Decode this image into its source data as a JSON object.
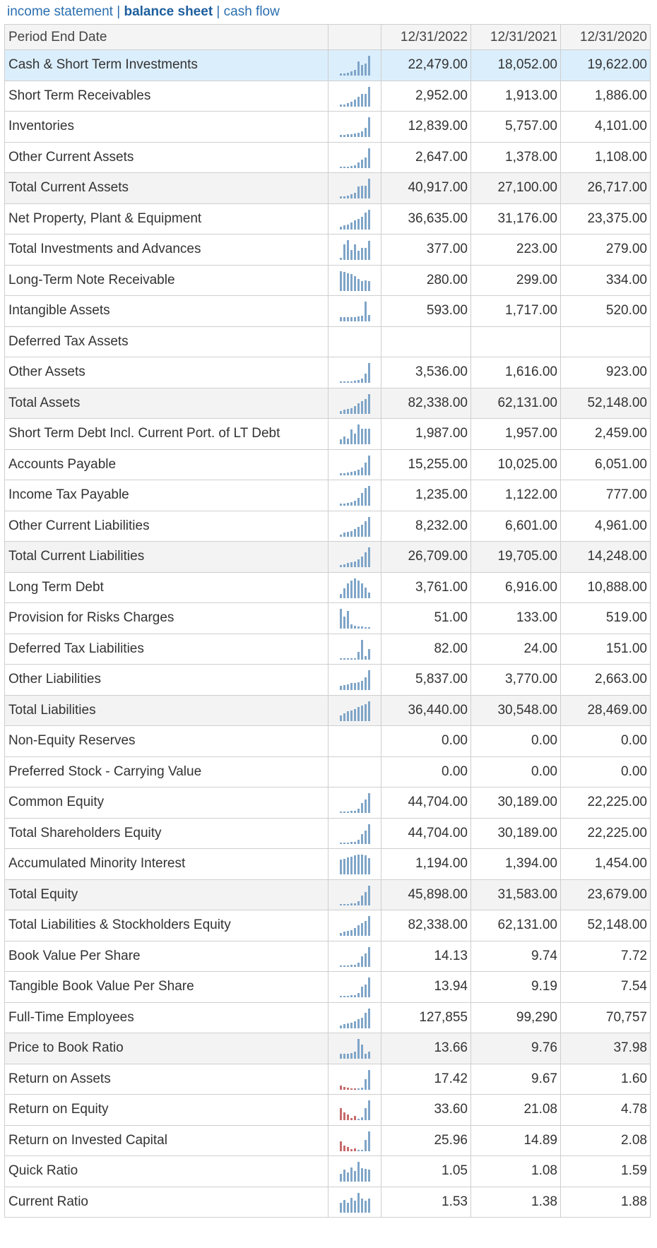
{
  "nav": {
    "income_label": "income statement",
    "balance_label": "balance sheet",
    "cashflow_label": "cash flow",
    "separator": " | "
  },
  "header": {
    "period_label": "Period End Date",
    "dates": [
      "12/31/2022",
      "12/31/2021",
      "12/31/2020"
    ]
  },
  "colors": {
    "bar": "#7fa5c8",
    "negative_bar": "#c86b6b",
    "highlight_row": "#dbeefc",
    "total_row": "#f3f3f3"
  },
  "rows": [
    {
      "label": "Cash & Short Term Investments",
      "values": [
        "22,479.00",
        "18,052.00",
        "19,622.00"
      ],
      "style": "hl",
      "spark": [
        0.1,
        0.12,
        0.15,
        0.2,
        0.3,
        0.7,
        0.55,
        0.6,
        1.0
      ]
    },
    {
      "label": "Short Term Receivables",
      "values": [
        "2,952.00",
        "1,913.00",
        "1,886.00"
      ],
      "style": "",
      "spark": [
        0.1,
        0.12,
        0.18,
        0.25,
        0.35,
        0.5,
        0.65,
        0.64,
        1.0
      ]
    },
    {
      "label": "Inventories",
      "values": [
        "12,839.00",
        "5,757.00",
        "4,101.00"
      ],
      "style": "",
      "spark": [
        0.1,
        0.12,
        0.14,
        0.16,
        0.18,
        0.22,
        0.3,
        0.45,
        1.0
      ]
    },
    {
      "label": "Other Current Assets",
      "values": [
        "2,647.00",
        "1,378.00",
        "1,108.00"
      ],
      "style": "",
      "spark": [
        0.05,
        0.06,
        0.08,
        0.1,
        0.15,
        0.3,
        0.42,
        0.52,
        1.0
      ]
    },
    {
      "label": "Total Current Assets",
      "values": [
        "40,917.00",
        "27,100.00",
        "26,717.00"
      ],
      "style": "total",
      "spark": [
        0.1,
        0.12,
        0.15,
        0.2,
        0.28,
        0.6,
        0.65,
        0.66,
        1.0
      ]
    },
    {
      "label": "Net Property, Plant & Equipment",
      "values": [
        "36,635.00",
        "31,176.00",
        "23,375.00"
      ],
      "style": "",
      "spark": [
        0.15,
        0.2,
        0.25,
        0.35,
        0.45,
        0.55,
        0.64,
        0.85,
        1.0
      ]
    },
    {
      "label": "Total Investments and Advances",
      "values": [
        "377.00",
        "223.00",
        "279.00"
      ],
      "style": "",
      "spark": [
        0.1,
        0.8,
        1.0,
        0.5,
        0.8,
        0.45,
        0.6,
        0.6,
        0.98
      ]
    },
    {
      "label": "Long-Term Note Receivable",
      "values": [
        "280.00",
        "299.00",
        "334.00"
      ],
      "style": "",
      "spark": [
        1.0,
        0.95,
        0.9,
        0.85,
        0.75,
        0.6,
        0.5,
        0.55,
        0.5
      ]
    },
    {
      "label": "Intangible Assets",
      "values": [
        "593.00",
        "1,717.00",
        "520.00"
      ],
      "style": "",
      "spark": [
        0.2,
        0.2,
        0.2,
        0.2,
        0.22,
        0.25,
        0.3,
        1.0,
        0.33
      ]
    },
    {
      "label": "Deferred Tax Assets",
      "values": [
        "",
        "",
        ""
      ],
      "style": "",
      "spark": []
    },
    {
      "label": "Other Assets",
      "values": [
        "3,536.00",
        "1,616.00",
        "923.00"
      ],
      "style": "",
      "spark": [
        0.05,
        0.05,
        0.06,
        0.08,
        0.1,
        0.14,
        0.2,
        0.45,
        1.0
      ]
    },
    {
      "label": "Total Assets",
      "values": [
        "82,338.00",
        "62,131.00",
        "52,148.00"
      ],
      "style": "total",
      "spark": [
        0.15,
        0.2,
        0.24,
        0.3,
        0.4,
        0.55,
        0.63,
        0.75,
        1.0
      ]
    },
    {
      "label": "Short Term Debt Incl. Current Port. of LT Debt",
      "values": [
        "1,987.00",
        "1,957.00",
        "2,459.00"
      ],
      "style": "",
      "spark": [
        0.25,
        0.4,
        0.3,
        0.75,
        0.55,
        1.0,
        0.8,
        0.8,
        0.8
      ]
    },
    {
      "label": "Accounts Payable",
      "values": [
        "15,255.00",
        "10,025.00",
        "6,051.00"
      ],
      "style": "",
      "spark": [
        0.1,
        0.12,
        0.15,
        0.18,
        0.22,
        0.3,
        0.4,
        0.66,
        1.0
      ]
    },
    {
      "label": "Income Tax Payable",
      "values": [
        "1,235.00",
        "1,122.00",
        "777.00"
      ],
      "style": "",
      "spark": [
        0.1,
        0.12,
        0.15,
        0.18,
        0.25,
        0.4,
        0.63,
        0.9,
        1.0
      ]
    },
    {
      "label": "Other Current Liabilities",
      "values": [
        "8,232.00",
        "6,601.00",
        "4,961.00"
      ],
      "style": "",
      "spark": [
        0.1,
        0.2,
        0.25,
        0.3,
        0.4,
        0.5,
        0.6,
        0.8,
        1.0
      ]
    },
    {
      "label": "Total Current Liabilities",
      "values": [
        "26,709.00",
        "19,705.00",
        "14,248.00"
      ],
      "style": "total",
      "spark": [
        0.12,
        0.15,
        0.2,
        0.25,
        0.3,
        0.4,
        0.53,
        0.74,
        1.0
      ]
    },
    {
      "label": "Long Term Debt",
      "values": [
        "3,761.00",
        "6,916.00",
        "10,888.00"
      ],
      "style": "",
      "spark": [
        0.2,
        0.5,
        0.75,
        0.9,
        1.0,
        0.9,
        0.75,
        0.55,
        0.3
      ]
    },
    {
      "label": "Provision for Risks Charges",
      "values": [
        "51.00",
        "133.00",
        "519.00"
      ],
      "style": "",
      "spark": [
        1.0,
        0.6,
        0.9,
        0.2,
        0.15,
        0.12,
        0.1,
        0.05,
        0.03
      ]
    },
    {
      "label": "Deferred Tax Liabilities",
      "values": [
        "82.00",
        "24.00",
        "151.00"
      ],
      "style": "",
      "spark": [
        0,
        0,
        0,
        0,
        0,
        0.4,
        1.0,
        0.17,
        0.55
      ]
    },
    {
      "label": "Other Liabilities",
      "values": [
        "5,837.00",
        "3,770.00",
        "2,663.00"
      ],
      "style": "",
      "spark": [
        0.2,
        0.25,
        0.3,
        0.35,
        0.35,
        0.4,
        0.45,
        0.65,
        1.0
      ]
    },
    {
      "label": "Total Liabilities",
      "values": [
        "36,440.00",
        "30,548.00",
        "28,469.00"
      ],
      "style": "total",
      "spark": [
        0.3,
        0.4,
        0.5,
        0.55,
        0.6,
        0.7,
        0.78,
        0.84,
        1.0
      ]
    },
    {
      "label": "Non-Equity Reserves",
      "values": [
        "0.00",
        "0.00",
        "0.00"
      ],
      "style": "",
      "spark": []
    },
    {
      "label": "Preferred Stock - Carrying Value",
      "values": [
        "0.00",
        "0.00",
        "0.00"
      ],
      "style": "",
      "spark": []
    },
    {
      "label": "Common Equity",
      "values": [
        "44,704.00",
        "30,189.00",
        "22,225.00"
      ],
      "style": "",
      "spark": [
        0.05,
        0.06,
        0.08,
        0.1,
        0.12,
        0.2,
        0.5,
        0.68,
        1.0
      ]
    },
    {
      "label": "Total Shareholders Equity",
      "values": [
        "44,704.00",
        "30,189.00",
        "22,225.00"
      ],
      "style": "",
      "spark": [
        0.05,
        0.06,
        0.08,
        0.1,
        0.12,
        0.2,
        0.5,
        0.68,
        1.0
      ]
    },
    {
      "label": "Accumulated Minority Interest",
      "values": [
        "1,194.00",
        "1,394.00",
        "1,454.00"
      ],
      "style": "",
      "spark": [
        0.75,
        0.8,
        0.85,
        0.9,
        0.95,
        1.0,
        1.0,
        0.96,
        0.82
      ]
    },
    {
      "label": "Total Equity",
      "values": [
        "45,898.00",
        "31,583.00",
        "23,679.00"
      ],
      "style": "total",
      "spark": [
        0.05,
        0.06,
        0.08,
        0.1,
        0.12,
        0.2,
        0.5,
        0.69,
        1.0
      ]
    },
    {
      "label": "Total Liabilities & Stockholders Equity",
      "values": [
        "82,338.00",
        "62,131.00",
        "52,148.00"
      ],
      "style": "",
      "spark": [
        0.15,
        0.2,
        0.24,
        0.3,
        0.4,
        0.55,
        0.63,
        0.75,
        1.0
      ]
    },
    {
      "label": "Book Value Per Share",
      "values": [
        "14.13",
        "9.74",
        "7.72"
      ],
      "style": "",
      "spark": [
        0.05,
        0.06,
        0.08,
        0.1,
        0.12,
        0.2,
        0.55,
        0.69,
        1.0
      ]
    },
    {
      "label": "Tangible Book Value Per Share",
      "values": [
        "13.94",
        "9.19",
        "7.54"
      ],
      "style": "",
      "spark": [
        0.05,
        0.06,
        0.08,
        0.1,
        0.12,
        0.2,
        0.54,
        0.66,
        1.0
      ]
    },
    {
      "label": "Full-Time Employees",
      "values": [
        "127,855",
        "99,290",
        "70,757"
      ],
      "style": "",
      "spark": [
        0.15,
        0.2,
        0.25,
        0.3,
        0.35,
        0.45,
        0.55,
        0.78,
        1.0
      ]
    },
    {
      "label": "Price to Book Ratio",
      "values": [
        "13.66",
        "9.76",
        "37.98"
      ],
      "style": "total",
      "spark": [
        0.25,
        0.25,
        0.25,
        0.3,
        0.35,
        1.0,
        0.7,
        0.26,
        0.36
      ]
    },
    {
      "label": "Return on Assets",
      "values": [
        "17.42",
        "9.67",
        "1.60"
      ],
      "style": "",
      "spark": [
        -0.2,
        -0.15,
        -0.1,
        -0.05,
        -0.08,
        0.05,
        0.1,
        0.55,
        1.0
      ]
    },
    {
      "label": "Return on Equity",
      "values": [
        "33.60",
        "21.08",
        "4.78"
      ],
      "style": "",
      "spark": [
        -0.6,
        -0.4,
        -0.3,
        -0.1,
        -0.2,
        0.05,
        0.14,
        0.62,
        1.0
      ]
    },
    {
      "label": "Return on Invested Capital",
      "values": [
        "25.96",
        "14.89",
        "2.08"
      ],
      "style": "",
      "spark": [
        -0.5,
        -0.3,
        -0.2,
        -0.1,
        -0.15,
        0.05,
        0.08,
        0.57,
        1.0
      ]
    },
    {
      "label": "Quick Ratio",
      "values": [
        "1.05",
        "1.08",
        "1.59"
      ],
      "style": "",
      "spark": [
        0.4,
        0.6,
        0.45,
        0.7,
        0.55,
        1.0,
        0.68,
        0.66,
        0.6
      ]
    },
    {
      "label": "Current Ratio",
      "values": [
        "1.53",
        "1.38",
        "1.88"
      ],
      "style": "",
      "spark": [
        0.5,
        0.65,
        0.5,
        0.75,
        0.6,
        1.0,
        0.7,
        0.6,
        0.72
      ]
    }
  ]
}
